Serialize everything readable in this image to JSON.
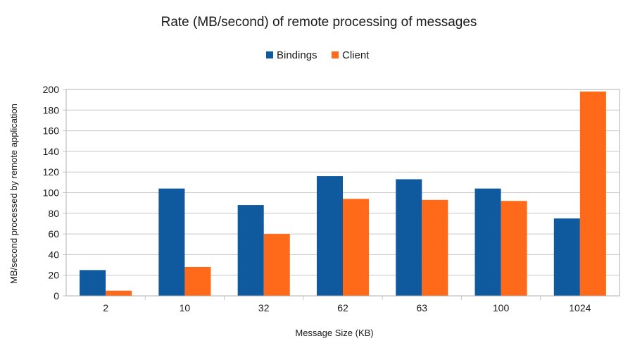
{
  "chart_data": {
    "type": "bar",
    "title": "Rate (MB/second) of remote processing of messages",
    "xlabel": "Message Size (KB)",
    "ylabel": "MB/second processed by remote application",
    "categories": [
      "2",
      "10",
      "32",
      "62",
      "63",
      "100",
      "1024"
    ],
    "series": [
      {
        "name": "Bindings",
        "color": "#0f5a9e",
        "values": [
          25,
          104,
          88,
          116,
          113,
          104,
          75
        ]
      },
      {
        "name": "Client",
        "color": "#ff6a1a",
        "values": [
          5,
          28,
          60,
          94,
          93,
          92,
          198
        ]
      }
    ],
    "ylim": [
      0,
      200
    ],
    "yticks": [
      0,
      20,
      40,
      60,
      80,
      100,
      120,
      140,
      160,
      180,
      200
    ],
    "grid": true,
    "legend_position": "top-center"
  }
}
